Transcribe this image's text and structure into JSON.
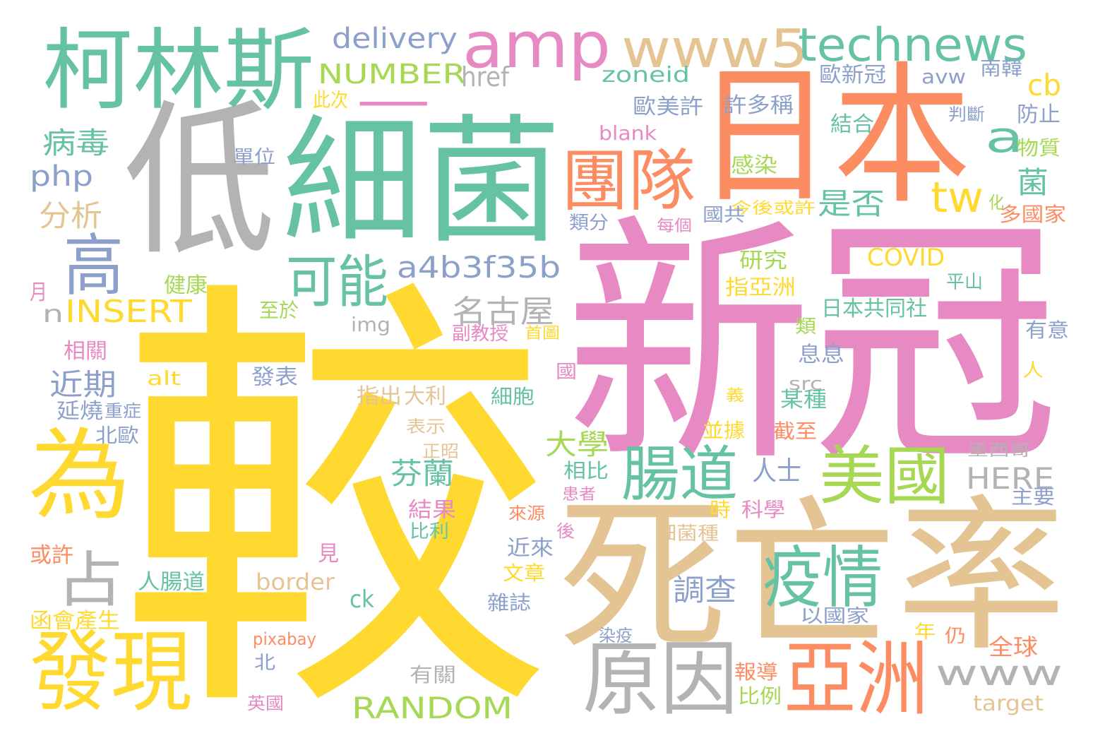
{
  "palette": {
    "teal": "#66c2a5",
    "orange": "#fc8d62",
    "periwinkle": "#8da0cb",
    "pink": "#e78ac3",
    "green": "#a6d854",
    "yellow": "#ffd92f",
    "tan": "#e5c494",
    "gray": "#b3b3b3"
  },
  "words": [
    {
      "text": "較",
      "color": "yellow"
    },
    {
      "text": "新冠",
      "color": "pink"
    },
    {
      "text": "細菌",
      "color": "teal"
    },
    {
      "text": "低",
      "color": "gray"
    },
    {
      "text": "日本",
      "color": "orange"
    },
    {
      "text": "死亡率",
      "color": "tan"
    },
    {
      "text": "一",
      "color": "pink"
    },
    {
      "text": "柯林斯",
      "color": "teal"
    },
    {
      "text": "amp",
      "color": "pink"
    },
    {
      "text": "www5",
      "color": "tan"
    },
    {
      "text": "technews",
      "color": "teal"
    },
    {
      "text": "為",
      "color": "yellow"
    },
    {
      "text": "發現",
      "color": "yellow"
    },
    {
      "text": "原因",
      "color": "gray"
    },
    {
      "text": "亞洲",
      "color": "orange"
    },
    {
      "text": "團隊",
      "color": "orange"
    },
    {
      "text": "高",
      "color": "periwinkle"
    },
    {
      "text": "美國",
      "color": "green"
    },
    {
      "text": "疫情",
      "color": "teal"
    },
    {
      "text": "腸道",
      "color": "teal"
    },
    {
      "text": "可能",
      "color": "teal"
    },
    {
      "text": "占",
      "color": "gray"
    },
    {
      "text": "a",
      "color": "teal"
    },
    {
      "text": "tw",
      "color": "yellow"
    },
    {
      "text": "delivery",
      "color": "periwinkle"
    },
    {
      "text": "a4b3f35b",
      "color": "periwinkle"
    },
    {
      "text": "www",
      "color": "gray"
    },
    {
      "text": "NUMBER",
      "color": "green"
    },
    {
      "text": "href",
      "color": "gray"
    },
    {
      "text": "zoneid",
      "color": "teal"
    },
    {
      "text": "INSERT",
      "color": "yellow"
    },
    {
      "text": "n",
      "color": "gray"
    },
    {
      "text": "RANDOM",
      "color": "green"
    },
    {
      "text": "名古屋",
      "color": "gray"
    },
    {
      "text": "病毒",
      "color": "teal"
    },
    {
      "text": "php",
      "color": "periwinkle"
    },
    {
      "text": "分析",
      "color": "tan"
    },
    {
      "text": "是否",
      "color": "teal"
    },
    {
      "text": "近期",
      "color": "periwinkle"
    },
    {
      "text": "大學",
      "color": "green"
    },
    {
      "text": "芬蘭",
      "color": "teal"
    },
    {
      "text": "人士",
      "color": "periwinkle"
    },
    {
      "text": "調查",
      "color": "periwinkle"
    },
    {
      "text": "HERE",
      "color": "gray"
    },
    {
      "text": "cb",
      "color": "yellow"
    },
    {
      "text": "菌",
      "color": "teal"
    },
    {
      "text": "COVID",
      "color": "yellow"
    },
    {
      "text": "歐新冠",
      "color": "periwinkle"
    },
    {
      "text": "avw",
      "color": "periwinkle"
    },
    {
      "text": "南韓",
      "color": "periwinkle"
    },
    {
      "text": "此次",
      "color": "yellow"
    },
    {
      "text": "歐美許",
      "color": "periwinkle"
    },
    {
      "text": "許多稱",
      "color": "periwinkle"
    },
    {
      "text": "防止",
      "color": "periwinkle"
    },
    {
      "text": "判斷",
      "color": "periwinkle"
    },
    {
      "text": "結合",
      "color": "teal"
    },
    {
      "text": "blank",
      "color": "pink"
    },
    {
      "text": "物質",
      "color": "green"
    },
    {
      "text": "單位",
      "color": "periwinkle"
    },
    {
      "text": "感染",
      "color": "green"
    },
    {
      "text": "化",
      "color": "green"
    },
    {
      "text": "今後或許",
      "color": "yellow"
    },
    {
      "text": "類分",
      "color": "periwinkle"
    },
    {
      "text": "國共",
      "color": "periwinkle"
    },
    {
      "text": "多國家",
      "color": "orange"
    },
    {
      "text": "每個",
      "color": "pink"
    },
    {
      "text": "研究",
      "color": "green"
    },
    {
      "text": "指亞洲",
      "color": "yellow"
    },
    {
      "text": "平山",
      "color": "teal"
    },
    {
      "text": "月",
      "color": "pink"
    },
    {
      "text": "健康",
      "color": "green"
    },
    {
      "text": "至於",
      "color": "green"
    },
    {
      "text": "日本共同社",
      "color": "teal"
    },
    {
      "text": "img",
      "color": "gray"
    },
    {
      "text": "副教授",
      "color": "pink"
    },
    {
      "text": "首圖",
      "color": "yellow"
    },
    {
      "text": "有意",
      "color": "periwinkle"
    },
    {
      "text": "類",
      "color": "green"
    },
    {
      "text": "相關",
      "color": "pink"
    },
    {
      "text": "息息",
      "color": "periwinkle"
    },
    {
      "text": "alt",
      "color": "yellow"
    },
    {
      "text": "發表",
      "color": "periwinkle"
    },
    {
      "text": "國",
      "color": "pink"
    },
    {
      "text": "人",
      "color": "yellow"
    },
    {
      "text": "指出",
      "color": "tan"
    },
    {
      "text": "大利",
      "color": "tan"
    },
    {
      "text": "細胞",
      "color": "teal"
    },
    {
      "text": "src",
      "color": "gray"
    },
    {
      "text": "某種",
      "color": "teal"
    },
    {
      "text": "義",
      "color": "yellow"
    },
    {
      "text": "延燒",
      "color": "periwinkle"
    },
    {
      "text": "重症",
      "color": "periwinkle"
    },
    {
      "text": "北歐",
      "color": "periwinkle"
    },
    {
      "text": "表示",
      "color": "tan"
    },
    {
      "text": "並據",
      "color": "yellow"
    },
    {
      "text": "截至",
      "color": "orange"
    },
    {
      "text": "正昭",
      "color": "tan"
    },
    {
      "text": "墨西哥",
      "color": "gray"
    },
    {
      "text": "相比",
      "color": "teal"
    },
    {
      "text": "患者",
      "color": "pink"
    },
    {
      "text": "主要",
      "color": "periwinkle"
    },
    {
      "text": "結果",
      "color": "pink"
    },
    {
      "text": "來源",
      "color": "orange"
    },
    {
      "text": "時",
      "color": "yellow"
    },
    {
      "text": "科學",
      "color": "pink"
    },
    {
      "text": "比利",
      "color": "teal"
    },
    {
      "text": "後",
      "color": "pink"
    },
    {
      "text": "細菌種",
      "color": "tan"
    },
    {
      "text": "或許",
      "color": "orange"
    },
    {
      "text": "近來",
      "color": "periwinkle"
    },
    {
      "text": "見",
      "color": "pink"
    },
    {
      "text": "文章",
      "color": "yellow"
    },
    {
      "text": "人腸道",
      "color": "teal"
    },
    {
      "text": "border",
      "color": "tan"
    },
    {
      "text": "ck",
      "color": "teal"
    },
    {
      "text": "雜誌",
      "color": "periwinkle"
    },
    {
      "text": "以國家",
      "color": "periwinkle"
    },
    {
      "text": "函會產生",
      "color": "yellow"
    },
    {
      "text": "年",
      "color": "yellow"
    },
    {
      "text": "仍",
      "color": "orange"
    },
    {
      "text": "染疫",
      "color": "periwinkle"
    },
    {
      "text": "全球",
      "color": "orange"
    },
    {
      "text": "pixabay",
      "color": "orange"
    },
    {
      "text": "北",
      "color": "periwinkle"
    },
    {
      "text": "有關",
      "color": "gray"
    },
    {
      "text": "報導",
      "color": "orange"
    },
    {
      "text": "比例",
      "color": "green"
    },
    {
      "text": "英國",
      "color": "pink"
    },
    {
      "text": "target",
      "color": "tan"
    }
  ]
}
